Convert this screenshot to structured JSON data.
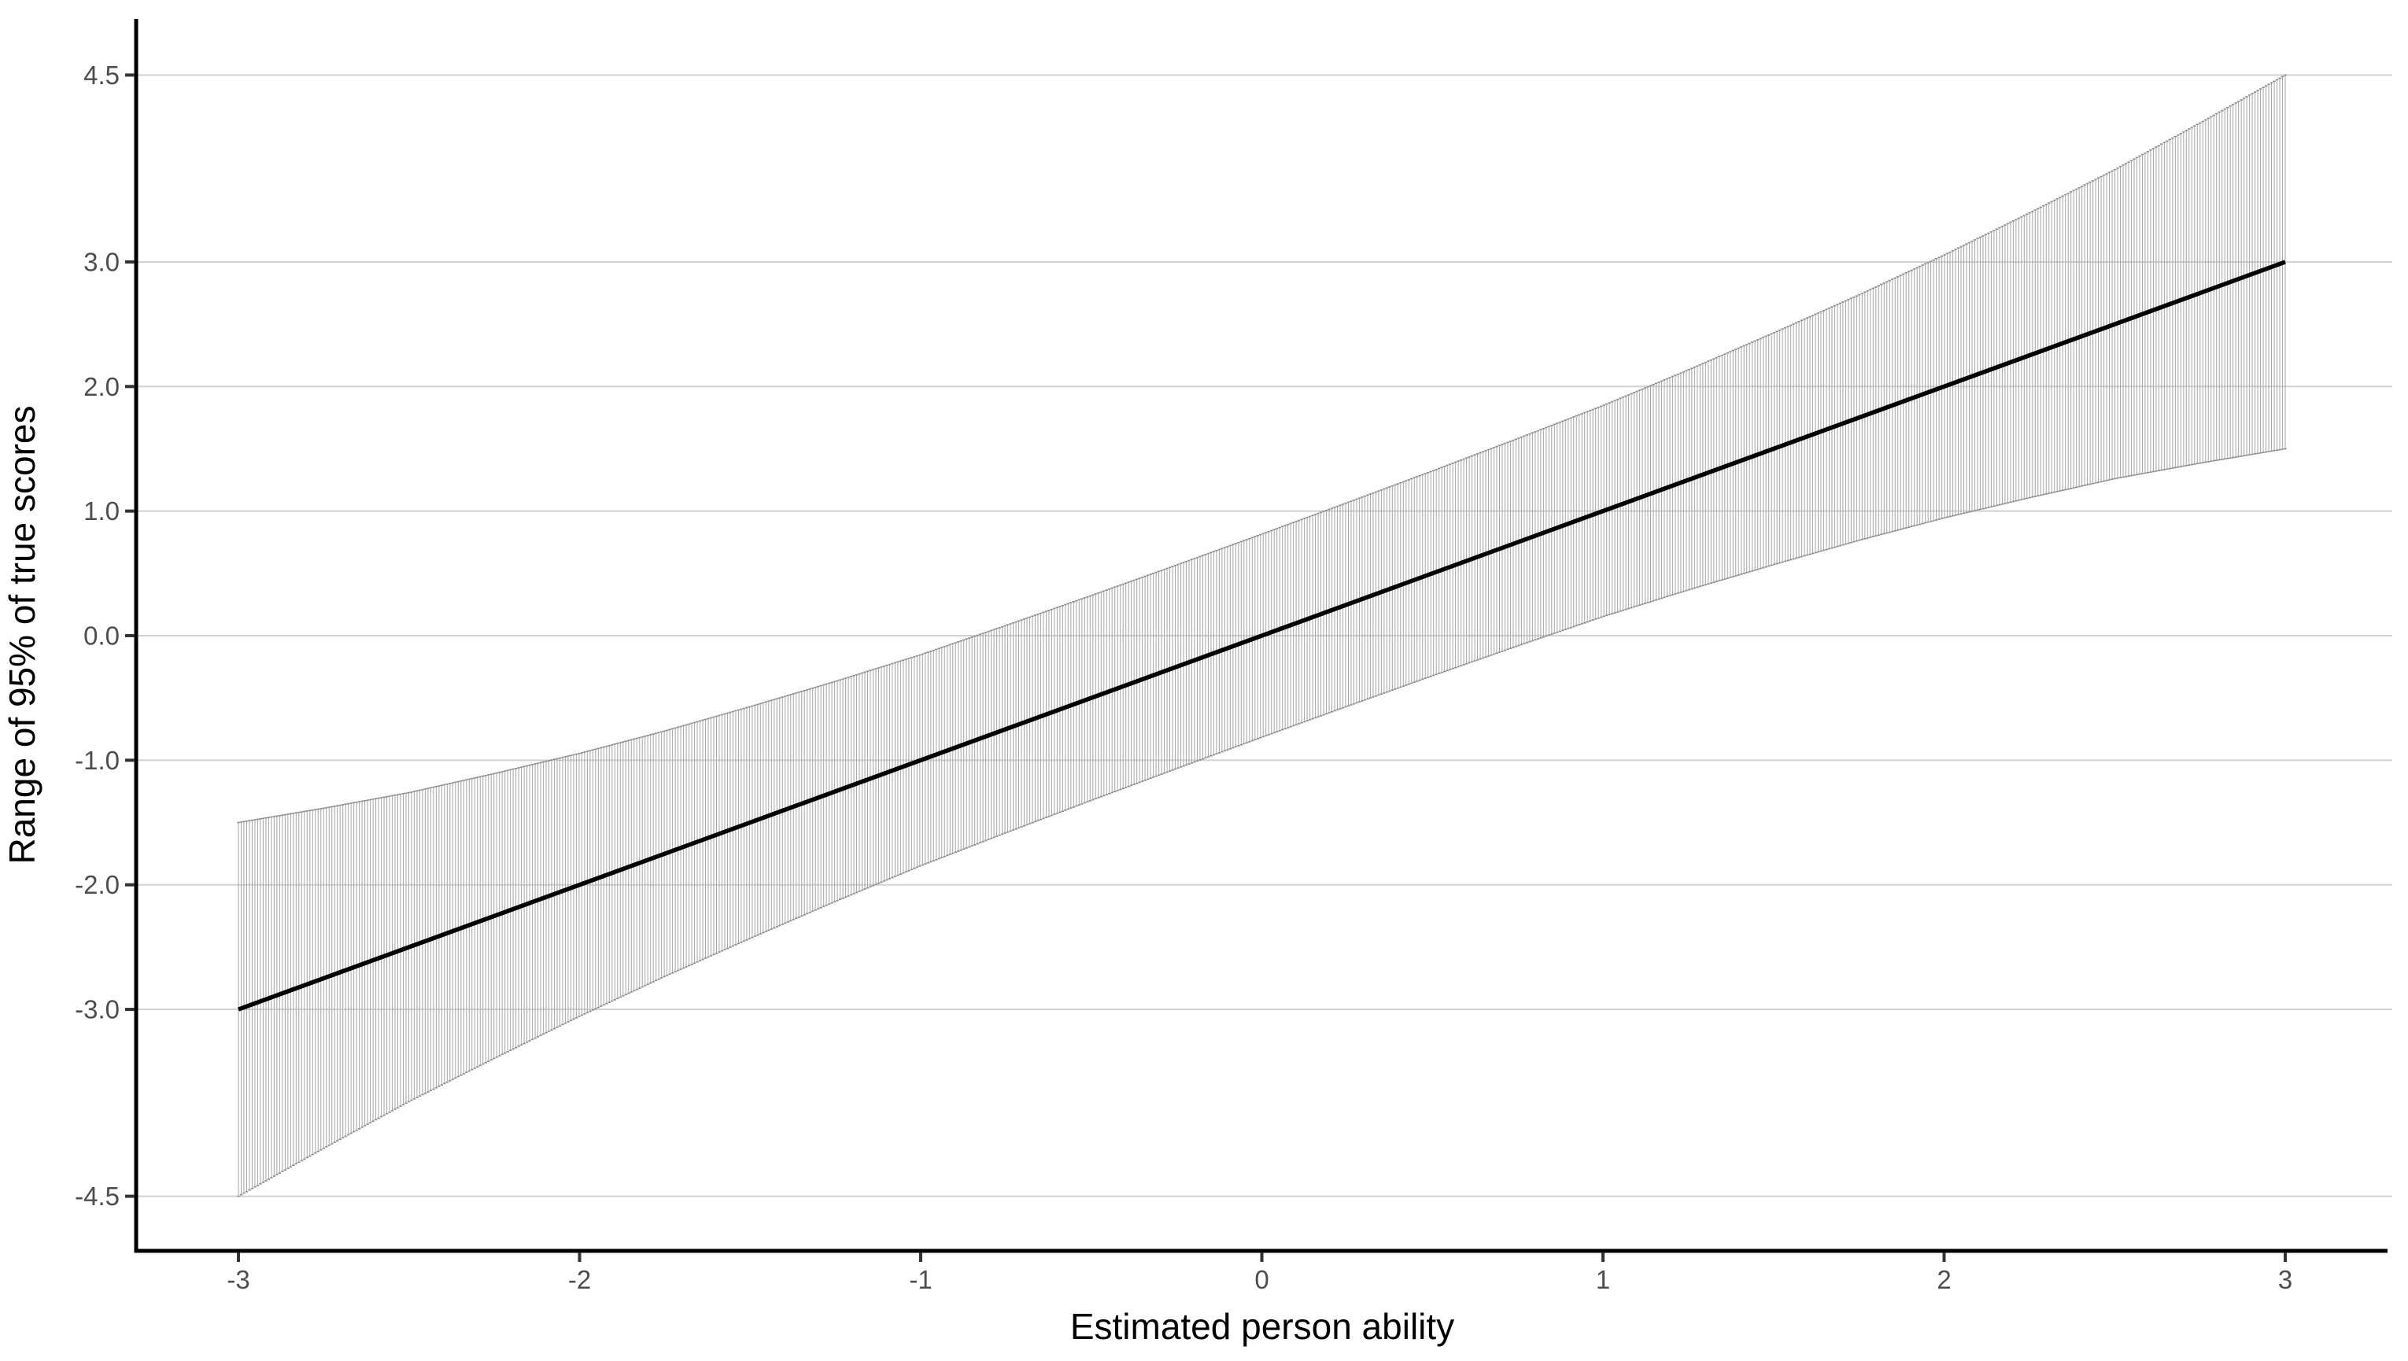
{
  "chart_data": {
    "type": "line",
    "title": "",
    "xlabel": "Estimated person ability",
    "ylabel": "Range of 95% of true scores",
    "x_ticks": [
      -3,
      -2,
      -1,
      0,
      1,
      2,
      3
    ],
    "x_tick_labels": [
      "-3",
      "-2",
      "-1",
      "0",
      "1",
      "2",
      "3"
    ],
    "y_ticks": [
      4.5,
      3.0,
      2.0,
      1.0,
      0.0,
      -1.0,
      -2.0,
      -3.0,
      -4.5
    ],
    "y_tick_labels": [
      "4.5",
      "3.0",
      "2.0",
      "1.0",
      "0.0",
      "-1.0",
      "-2.0",
      "-3.0",
      "-4.5"
    ],
    "xlim": [
      -3.3,
      3.3
    ],
    "ylim": [
      -4.95,
      4.95
    ],
    "grid": "horizontal-major-only",
    "legend": "none",
    "series": [
      {
        "name": "identity-line",
        "type": "line",
        "points": [
          [
            -3,
            -3
          ],
          [
            3,
            3
          ]
        ],
        "color": "#000000",
        "width": 5.5
      },
      {
        "name": "true-score-95pct-interval-band",
        "type": "errorbar-band",
        "description": "dense vertical error bars, one per ability estimate, spanning estimate minus/plus half_width",
        "n_bars": 746,
        "x_min": -3,
        "x_max": 3,
        "envelope_x": [
          -3,
          -2.75,
          -2.5,
          -2.25,
          -2,
          -1.75,
          -1.5,
          -1.25,
          -1,
          -0.75,
          -0.5,
          -0.25,
          0,
          0.25,
          0.5,
          0.75,
          1,
          1.25,
          1.5,
          1.75,
          2,
          2.25,
          2.5,
          2.75,
          3
        ],
        "envelope_half_width": [
          1.5,
          1.365,
          1.24,
          1.143,
          1.055,
          0.985,
          0.93,
          0.883,
          0.847,
          0.832,
          0.822,
          0.817,
          0.815,
          0.817,
          0.822,
          0.832,
          0.847,
          0.883,
          0.93,
          0.985,
          1.055,
          1.143,
          1.24,
          1.365,
          1.5
        ],
        "bar_color": "#a8a8a8",
        "cap_color": "#8c8c8c"
      }
    ],
    "colors": {
      "background": "#ffffff",
      "gridline": "#d2d2d2",
      "axis_line": "#000000",
      "tick_mark": "#333333",
      "tick_label": "#4d4d4d",
      "axis_title": "#000000"
    }
  }
}
